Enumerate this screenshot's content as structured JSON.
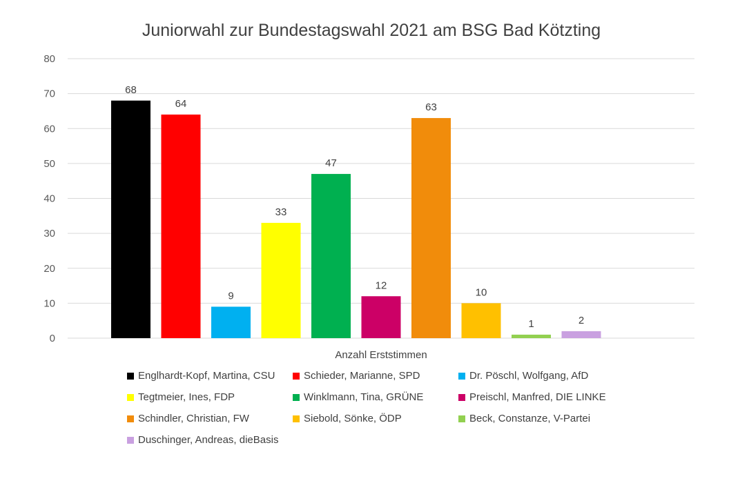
{
  "chart_data": {
    "type": "bar",
    "title": "Juniorwahl zur Bundestagswahl 2021 am BSG Bad Kötzting",
    "xlabel": "Anzahl Erststimmen",
    "ylabel": "",
    "ylim": [
      0,
      80
    ],
    "yticks": [
      "0",
      "10",
      "20",
      "30",
      "40",
      "50",
      "60",
      "70",
      "80"
    ],
    "grid": true,
    "legend_position": "bottom",
    "series": [
      {
        "name": "Englhardt-Kopf, Martina, CSU",
        "value": 68,
        "color": "#000000"
      },
      {
        "name": "Schieder, Marianne, SPD",
        "value": 64,
        "color": "#ff0000"
      },
      {
        "name": "Dr. Pöschl, Wolfgang, AfD",
        "value": 9,
        "color": "#00b0f0"
      },
      {
        "name": "Tegtmeier, Ines, FDP",
        "value": 33,
        "color": "#ffff00"
      },
      {
        "name": "Winklmann, Tina, GRÜNE",
        "value": 47,
        "color": "#00b050"
      },
      {
        "name": "Preischl, Manfred, DIE LINKE",
        "value": 12,
        "color": "#cc0066"
      },
      {
        "name": "Schindler, Christian, FW",
        "value": 63,
        "color": "#f18c0b"
      },
      {
        "name": "Siebold, Sönke, ÖDP",
        "value": 10,
        "color": "#ffc000"
      },
      {
        "name": "Beck, Constanze, V-Partei",
        "value": 1,
        "color": "#92d050"
      },
      {
        "name": "Duschinger, Andreas, dieBasis",
        "value": 2,
        "color": "#c9a0e0"
      }
    ]
  }
}
